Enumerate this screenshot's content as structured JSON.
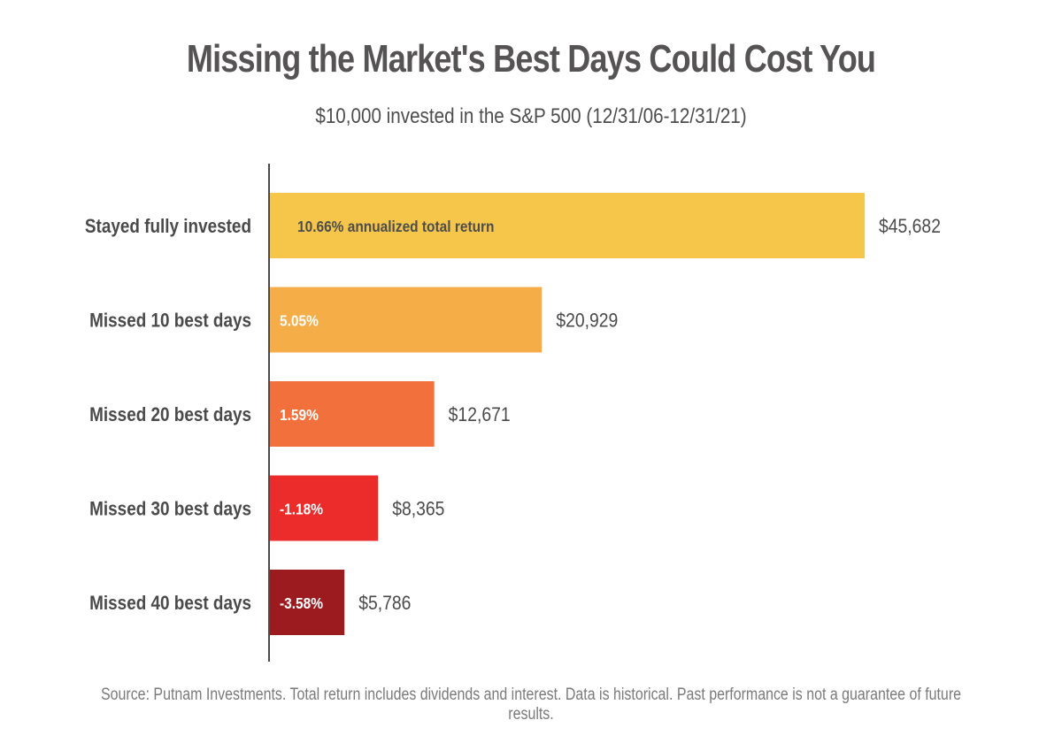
{
  "title": "Missing the Market's Best Days Could Cost You",
  "subtitle": "$10,000 invested in the S&P 500 (12/31/06-12/31/21)",
  "source": "Source: Putnam Investments. Total return includes dividends and interest. Data is historical. Past performance is not a guarantee of future results.",
  "chart_data": {
    "type": "bar",
    "orientation": "horizontal",
    "title": "Missing the Market's Best Days Could Cost You",
    "subtitle": "$10,000 invested in the S&P 500 (12/31/06-12/31/21)",
    "categories": [
      "Stayed fully invested",
      "Missed 10 best days",
      "Missed 20 best days",
      "Missed 30 best days",
      "Missed 40 best days"
    ],
    "values": [
      45682,
      20929,
      12671,
      8365,
      5786
    ],
    "value_labels": [
      "$45,682",
      "$20,929",
      "$12,671",
      "$8,365",
      "$5,786"
    ],
    "bar_labels": [
      "10.66% annualized total return",
      "5.05%",
      "1.59%",
      "-1.18%",
      "-3.58%"
    ],
    "colors": [
      "#F6C64B",
      "#F5AD48",
      "#F1703B",
      "#EC2B2B",
      "#9B1B1E"
    ],
    "bar_label_colors": [
      "#4d4d4d",
      "#ffffff",
      "#ffffff",
      "#ffffff",
      "#ffffff"
    ],
    "xlim": [
      0,
      45682
    ],
    "grid": false,
    "legend": "none"
  }
}
